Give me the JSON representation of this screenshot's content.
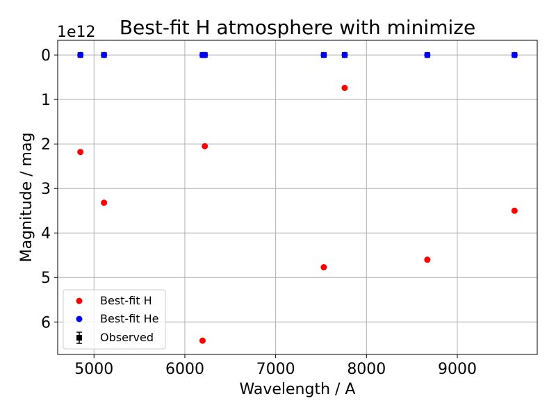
{
  "chart_data": {
    "type": "scatter",
    "title": "Best-fit H atmosphere with minimize",
    "xlabel": "Wavelength / A",
    "ylabel": "Magnitude / mag",
    "y_offset_label": "1e12",
    "y_scale_factor": 1000000000000.0,
    "y_inverted": true,
    "xlim": [
      4600,
      9880
    ],
    "ylim": [
      6.73,
      -0.33
    ],
    "x_ticks": [
      5000,
      6000,
      7000,
      8000,
      9000
    ],
    "x_tick_labels": [
      "5000",
      "6000",
      "7000",
      "8000",
      "9000"
    ],
    "y_ticks": [
      0,
      1,
      2,
      3,
      4,
      5,
      6
    ],
    "y_tick_labels": [
      "0",
      "1",
      "2",
      "3",
      "4",
      "5",
      "6"
    ],
    "grid": true,
    "legend_position": "lower-left",
    "colors": {
      "best_fit_h": "#ff0000",
      "best_fit_he": "#0000ff",
      "observed": "#000000",
      "grid": "#b0b0b0"
    },
    "series": [
      {
        "name": "Best-fit H",
        "marker": "circle",
        "color": "#ff0000",
        "x": [
          4850,
          5110,
          6195,
          6220,
          7530,
          7760,
          8670,
          9630
        ],
        "y": [
          2.18,
          3.32,
          6.42,
          2.05,
          4.77,
          0.74,
          4.6,
          3.5
        ]
      },
      {
        "name": "Best-fit He",
        "marker": "circle",
        "color": "#0000ff",
        "x": [
          4850,
          5110,
          6195,
          6220,
          7530,
          7760,
          8670,
          9630
        ],
        "y": [
          0,
          0,
          0,
          0,
          0,
          0,
          0,
          0
        ]
      },
      {
        "name": "Observed",
        "marker": "square-errorbar",
        "color": "#000000",
        "x": [
          4850,
          5110,
          6195,
          6220,
          7530,
          7760,
          8670,
          9630
        ],
        "y": [
          0,
          0,
          0,
          0,
          0,
          0,
          0,
          0
        ]
      }
    ]
  }
}
